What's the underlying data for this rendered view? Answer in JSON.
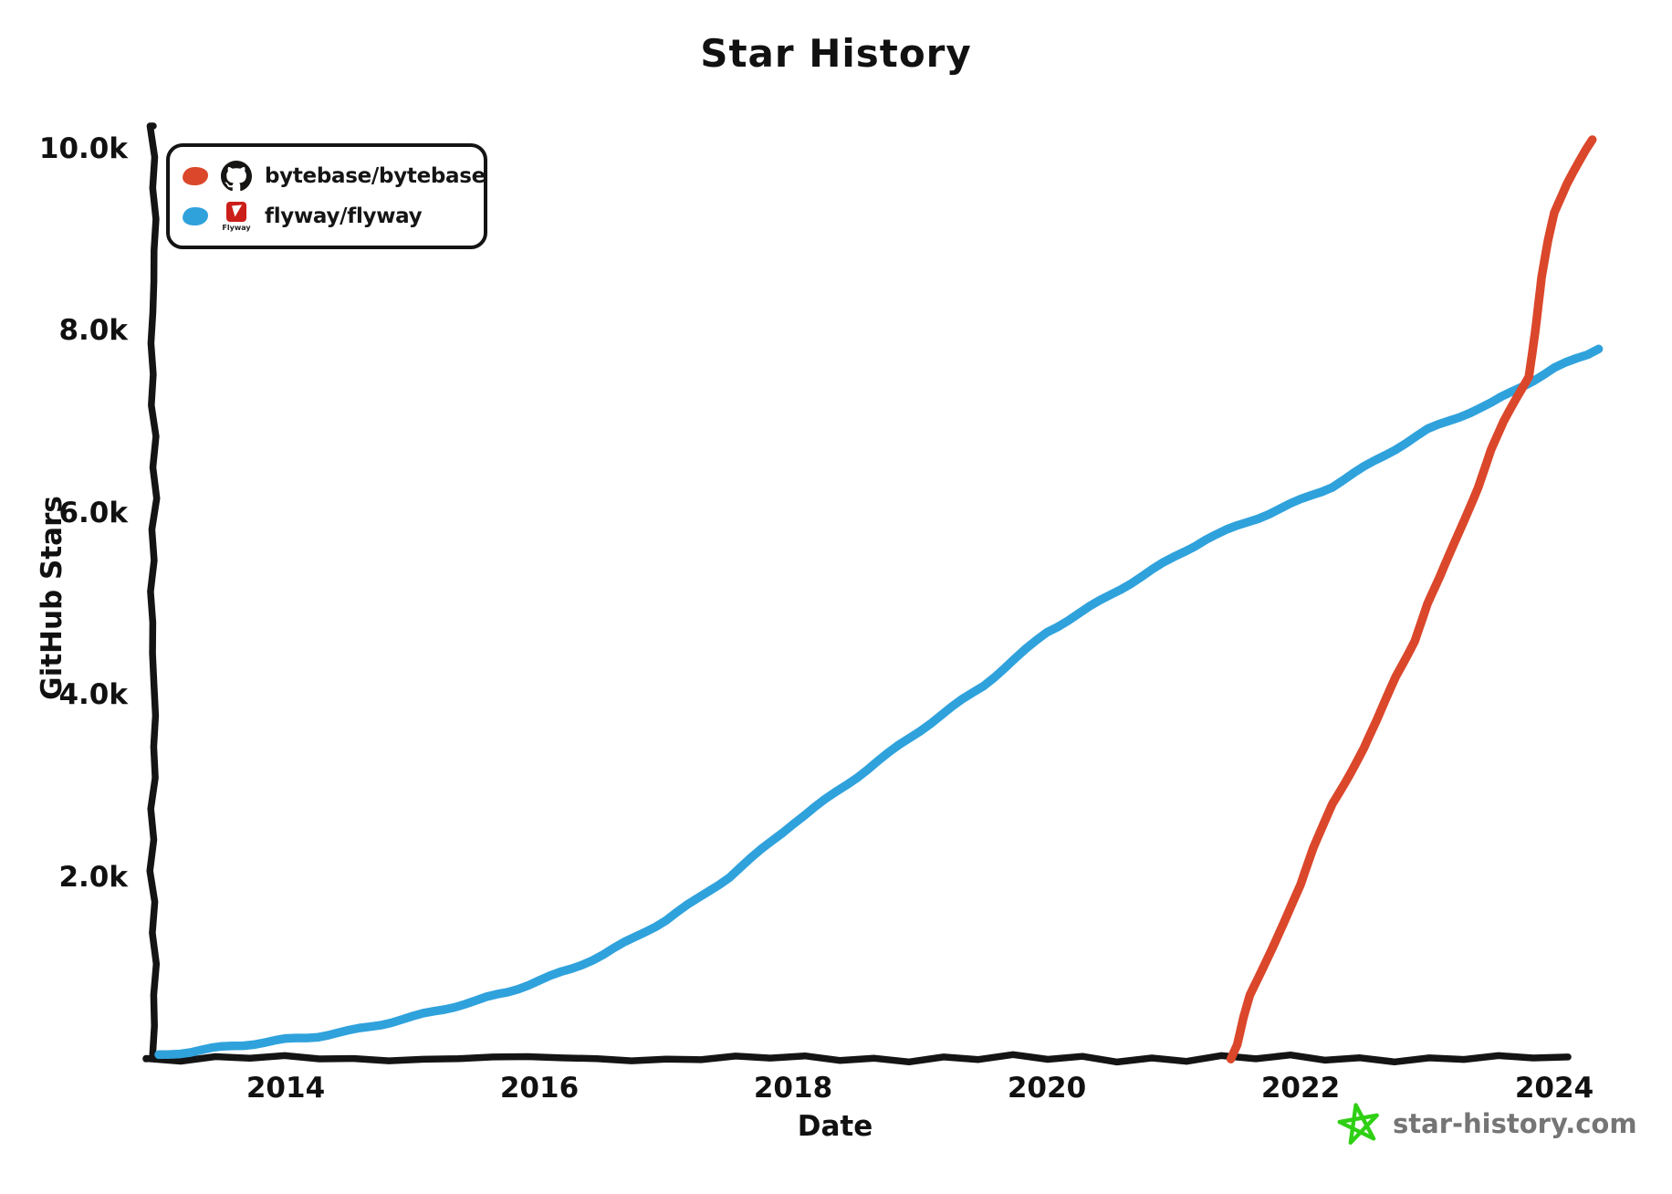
{
  "title": "Star History",
  "legend": {
    "items": [
      {
        "repo": "bytebase/bytebase",
        "color": "#DB472B",
        "icon": "github-icon"
      },
      {
        "repo": "flyway/flyway",
        "color": "#2FA2DC",
        "icon": "flyway-icon",
        "icon_caption": "Flyway"
      }
    ]
  },
  "watermark": {
    "label": "star-history.com",
    "color": "#757575",
    "star_color": "#2FD014"
  },
  "chart_data": {
    "type": "line",
    "title": "Star History",
    "xlabel": "Date",
    "ylabel": "GitHub Stars",
    "xlim": [
      2013.0,
      2024.45
    ],
    "ylim": [
      0,
      10000
    ],
    "grid": false,
    "legend_position": "top-left",
    "background": "#ffffff",
    "axis_color": "#141414",
    "x_ticks": [
      {
        "v": 2014,
        "label": "2014"
      },
      {
        "v": 2016,
        "label": "2016"
      },
      {
        "v": 2018,
        "label": "2018"
      },
      {
        "v": 2020,
        "label": "2020"
      },
      {
        "v": 2022,
        "label": "2022"
      },
      {
        "v": 2024,
        "label": "2024"
      }
    ],
    "y_ticks": [
      {
        "v": 2000,
        "label": "2.0k"
      },
      {
        "v": 4000,
        "label": "4.0k"
      },
      {
        "v": 6000,
        "label": "6.0k"
      },
      {
        "v": 8000,
        "label": "8.0k"
      },
      {
        "v": 10000,
        "label": "10.0k"
      }
    ],
    "series": [
      {
        "name": "bytebase/bytebase",
        "color": "#DB472B",
        "points": [
          [
            2021.45,
            0
          ],
          [
            2021.5,
            150
          ],
          [
            2021.55,
            450
          ],
          [
            2021.6,
            700
          ],
          [
            2021.7,
            1000
          ],
          [
            2021.8,
            1300
          ],
          [
            2021.9,
            1600
          ],
          [
            2022.0,
            1900
          ],
          [
            2022.1,
            2300
          ],
          [
            2022.25,
            2800
          ],
          [
            2022.4,
            3150
          ],
          [
            2022.5,
            3400
          ],
          [
            2022.6,
            3700
          ],
          [
            2022.75,
            4200
          ],
          [
            2022.9,
            4600
          ],
          [
            2023.0,
            5000
          ],
          [
            2023.1,
            5300
          ],
          [
            2023.25,
            5800
          ],
          [
            2023.4,
            6300
          ],
          [
            2023.5,
            6700
          ],
          [
            2023.6,
            7000
          ],
          [
            2023.7,
            7250
          ],
          [
            2023.8,
            7500
          ],
          [
            2023.85,
            8000
          ],
          [
            2023.9,
            8600
          ],
          [
            2023.95,
            9000
          ],
          [
            2024.0,
            9300
          ],
          [
            2024.1,
            9600
          ],
          [
            2024.2,
            9850
          ],
          [
            2024.3,
            10100
          ]
        ]
      },
      {
        "name": "flyway/flyway",
        "color": "#2FA2DC",
        "points": [
          [
            2013.0,
            30
          ],
          [
            2013.25,
            70
          ],
          [
            2013.5,
            120
          ],
          [
            2013.75,
            170
          ],
          [
            2014.0,
            220
          ],
          [
            2014.25,
            260
          ],
          [
            2014.5,
            310
          ],
          [
            2014.75,
            380
          ],
          [
            2015.0,
            450
          ],
          [
            2015.25,
            540
          ],
          [
            2015.5,
            630
          ],
          [
            2015.75,
            740
          ],
          [
            2016.0,
            870
          ],
          [
            2016.25,
            1000
          ],
          [
            2016.5,
            1150
          ],
          [
            2016.75,
            1330
          ],
          [
            2017.0,
            1520
          ],
          [
            2017.25,
            1750
          ],
          [
            2017.5,
            2000
          ],
          [
            2017.75,
            2300
          ],
          [
            2018.0,
            2600
          ],
          [
            2018.25,
            2850
          ],
          [
            2018.5,
            3100
          ],
          [
            2018.75,
            3350
          ],
          [
            2019.0,
            3600
          ],
          [
            2019.25,
            3850
          ],
          [
            2019.5,
            4100
          ],
          [
            2019.75,
            4400
          ],
          [
            2020.0,
            4700
          ],
          [
            2020.25,
            4900
          ],
          [
            2020.5,
            5100
          ],
          [
            2020.75,
            5300
          ],
          [
            2021.0,
            5500
          ],
          [
            2021.25,
            5700
          ],
          [
            2021.5,
            5850
          ],
          [
            2021.75,
            6000
          ],
          [
            2022.0,
            6150
          ],
          [
            2022.25,
            6300
          ],
          [
            2022.5,
            6500
          ],
          [
            2022.75,
            6700
          ],
          [
            2023.0,
            6900
          ],
          [
            2023.25,
            7050
          ],
          [
            2023.5,
            7200
          ],
          [
            2023.75,
            7400
          ],
          [
            2024.0,
            7600
          ],
          [
            2024.35,
            7800
          ]
        ]
      }
    ]
  }
}
